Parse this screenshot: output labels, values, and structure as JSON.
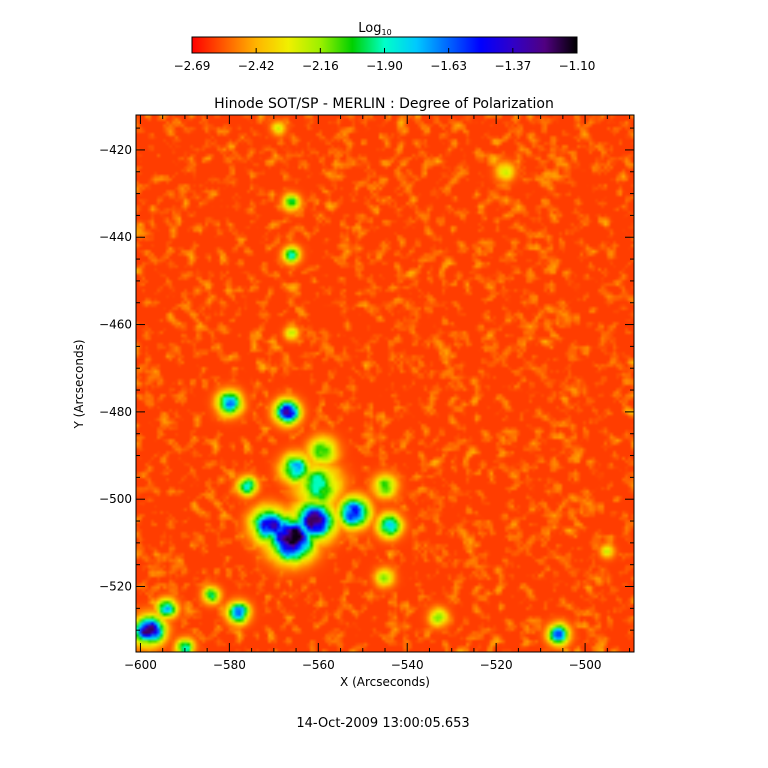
{
  "colorbar": {
    "title": "Log",
    "title_subscript": "10",
    "tick_labels": [
      "-2.69",
      "-2.42",
      "-2.16",
      "-1.90",
      "-1.63",
      "-1.37",
      "-1.10"
    ],
    "range": [
      -2.69,
      -1.1
    ],
    "colors": [
      "#ff0000",
      "#ff5a00",
      "#ffb400",
      "#f0f000",
      "#9cf000",
      "#00d000",
      "#00ffc8",
      "#00c8ff",
      "#0064ff",
      "#0000ff",
      "#3000c8",
      "#500080",
      "#000000"
    ]
  },
  "footer": {
    "timestamp": "14-Oct-2009 13:00:05.653"
  },
  "chart_data": {
    "type": "heatmap",
    "title": "Hinode SOT/SP - MERLIN : Degree of Polarization",
    "xlabel": "X (Arcseconds)",
    "ylabel": "Y (Arcseconds)",
    "xlim": [
      -601,
      -489
    ],
    "ylim": [
      -535,
      -412
    ],
    "x_ticks": [
      -600,
      -580,
      -560,
      -540,
      -520,
      -500
    ],
    "y_ticks": [
      -420,
      -440,
      -460,
      -480,
      -500,
      -520
    ],
    "value_scale": "log10",
    "value_range": [
      -2.69,
      -1.1
    ],
    "background_level": -2.6,
    "grid": false,
    "features": [
      {
        "x": -566,
        "y": -509,
        "peak": -1.12,
        "radius": 4.5
      },
      {
        "x": -561,
        "y": -505,
        "peak": -1.2,
        "radius": 4.0
      },
      {
        "x": -552,
        "y": -503,
        "peak": -1.25,
        "radius": 3.0
      },
      {
        "x": -571,
        "y": -506,
        "peak": -1.3,
        "radius": 3.5
      },
      {
        "x": -567,
        "y": -480,
        "peak": -1.3,
        "radius": 2.5
      },
      {
        "x": -580,
        "y": -478,
        "peak": -1.6,
        "radius": 2.5
      },
      {
        "x": -565,
        "y": -493,
        "peak": -1.7,
        "radius": 3.0
      },
      {
        "x": -560,
        "y": -497,
        "peak": -1.9,
        "radius": 4.5
      },
      {
        "x": -559,
        "y": -489,
        "peak": -2.0,
        "radius": 3.0
      },
      {
        "x": -544,
        "y": -506,
        "peak": -1.7,
        "radius": 2.5
      },
      {
        "x": -545,
        "y": -497,
        "peak": -2.05,
        "radius": 2.5
      },
      {
        "x": -576,
        "y": -497,
        "peak": -1.8,
        "radius": 2.0
      },
      {
        "x": -598,
        "y": -530,
        "peak": -1.2,
        "radius": 3.0
      },
      {
        "x": -594,
        "y": -525,
        "peak": -1.6,
        "radius": 2.0
      },
      {
        "x": -578,
        "y": -526,
        "peak": -1.5,
        "radius": 2.2
      },
      {
        "x": -584,
        "y": -522,
        "peak": -1.9,
        "radius": 1.8
      },
      {
        "x": -506,
        "y": -531,
        "peak": -1.6,
        "radius": 2.2
      },
      {
        "x": -566,
        "y": -444,
        "peak": -1.9,
        "radius": 1.8
      },
      {
        "x": -566,
        "y": -432,
        "peak": -2.0,
        "radius": 1.8
      },
      {
        "x": -569,
        "y": -415,
        "peak": -2.2,
        "radius": 1.5
      },
      {
        "x": -518,
        "y": -425,
        "peak": -2.2,
        "radius": 2.0
      },
      {
        "x": -566,
        "y": -462,
        "peak": -2.2,
        "radius": 1.5
      },
      {
        "x": -590,
        "y": -534,
        "peak": -1.9,
        "radius": 2.0
      },
      {
        "x": -545,
        "y": -518,
        "peak": -2.1,
        "radius": 2.0
      },
      {
        "x": -533,
        "y": -527,
        "peak": -2.1,
        "radius": 2.0
      },
      {
        "x": -495,
        "y": -512,
        "peak": -2.2,
        "radius": 1.5
      }
    ]
  }
}
